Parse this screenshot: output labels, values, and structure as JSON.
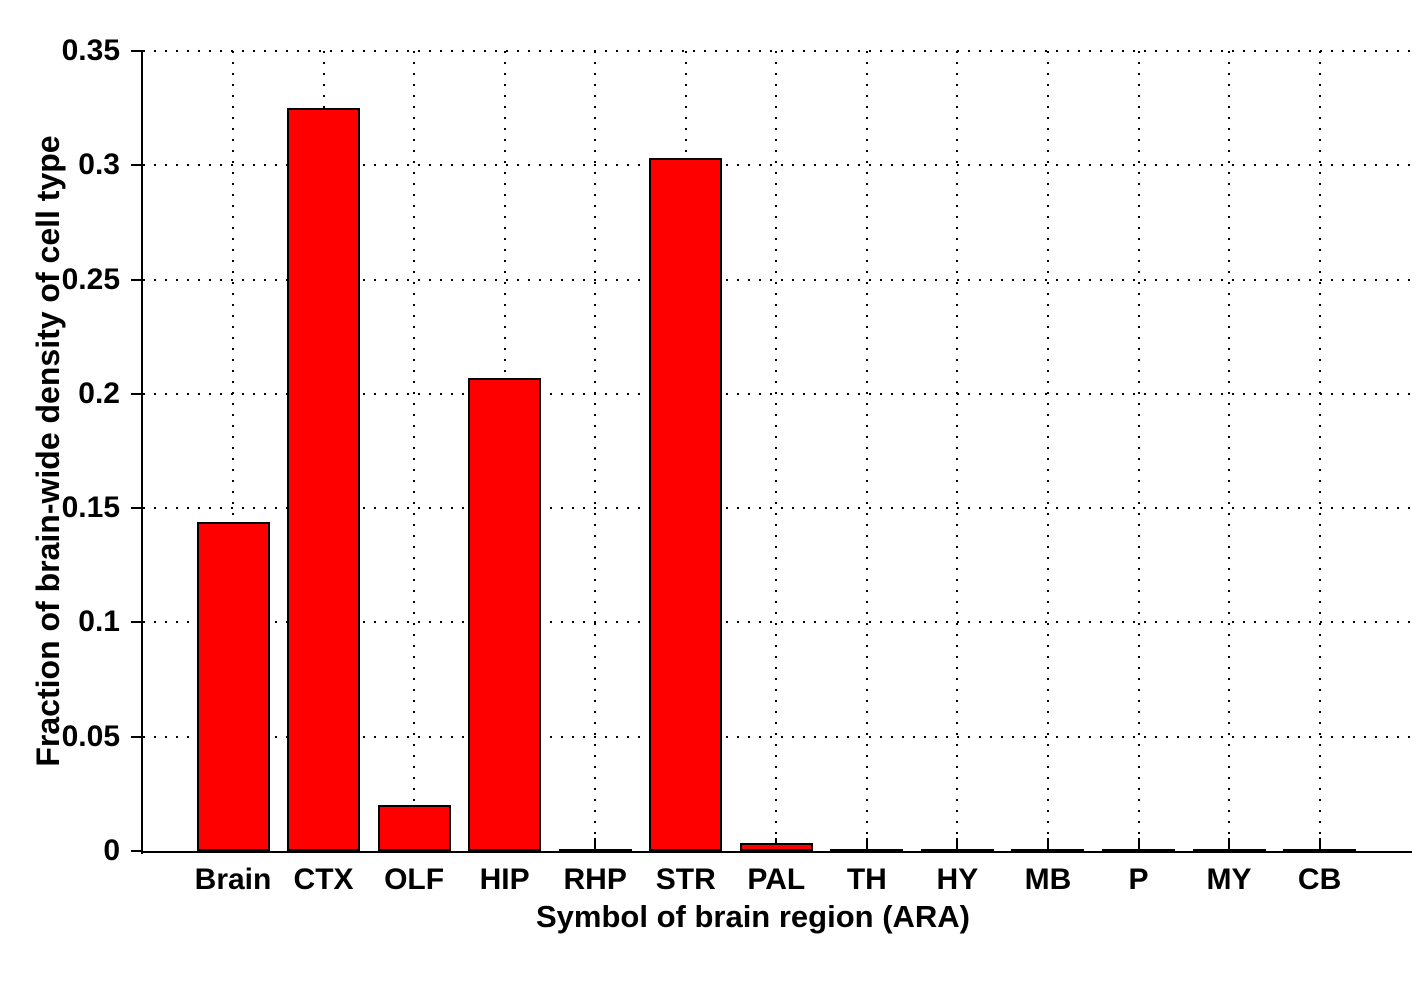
{
  "chart_data": {
    "type": "bar",
    "title": "",
    "xlabel": "Symbol of brain region (ARA)",
    "ylabel": "Fraction of brain-wide density of cell type",
    "categories": [
      "Brain",
      "CTX",
      "OLF",
      "HIP",
      "RHP",
      "STR",
      "PAL",
      "TH",
      "HY",
      "MB",
      "P",
      "MY",
      "CB"
    ],
    "values": [
      0.144,
      0.325,
      0.02,
      0.207,
      0.001,
      0.303,
      0.0035,
      0.0005,
      0.0005,
      0.0005,
      0.0005,
      0.0005,
      0.0005
    ],
    "ylim": [
      0,
      0.35
    ],
    "yticks": {
      "values": [
        0,
        0.05,
        0.1,
        0.15,
        0.2,
        0.25,
        0.3,
        0.35
      ],
      "labels": [
        "0",
        "0.05",
        "0.1",
        "0.15",
        "0.2",
        "0.25",
        "0.3",
        "0.35"
      ]
    },
    "grid": "dotted",
    "legend": "none",
    "colors": {
      "bar_fill": "#ff0000",
      "bar_edge": "#000000",
      "axis": "#000000",
      "text": "#000000",
      "background": "#ffffff"
    }
  }
}
